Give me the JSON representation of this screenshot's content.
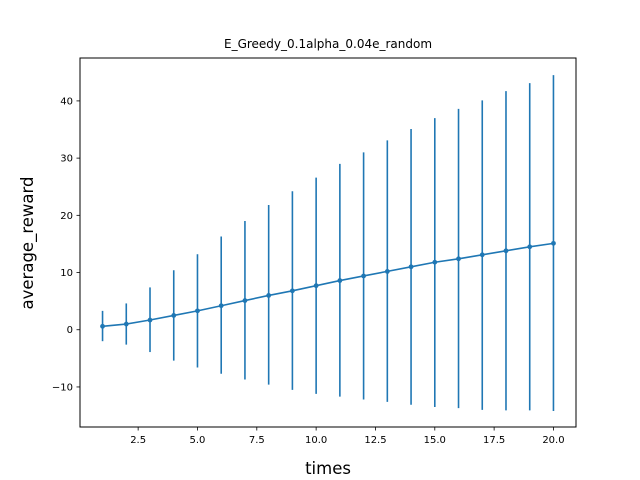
{
  "chart_data": {
    "type": "line",
    "title": "E_Greedy_0.1alpha_0.04e_random",
    "xlabel": "times",
    "ylabel": "average_reward",
    "xlim": [
      0.05,
      20.95
    ],
    "ylim": [
      -17,
      47.5
    ],
    "x_ticks": [
      2.5,
      5.0,
      7.5,
      10.0,
      12.5,
      15.0,
      17.5,
      20.0
    ],
    "x_tick_labels": [
      "2.5",
      "5.0",
      "7.5",
      "10.0",
      "12.5",
      "15.0",
      "17.5",
      "20.0"
    ],
    "y_ticks": [
      -10,
      0,
      10,
      20,
      30,
      40
    ],
    "y_tick_labels": [
      "−10",
      "0",
      "10",
      "20",
      "30",
      "40"
    ],
    "grid": false,
    "legend": "none",
    "color": "#1f77b4",
    "series": [
      {
        "x": [
          1,
          2,
          3,
          4,
          5,
          6,
          7,
          8,
          9,
          10,
          11,
          12,
          13,
          14,
          15,
          16,
          17,
          18,
          19,
          20
        ],
        "y": [
          0.6,
          1.0,
          1.7,
          2.5,
          3.3,
          4.2,
          5.1,
          6.0,
          6.8,
          7.7,
          8.6,
          9.4,
          10.2,
          11.0,
          11.8,
          12.4,
          13.1,
          13.8,
          14.5,
          15.1
        ],
        "error_upper": [
          3.3,
          4.6,
          7.4,
          10.4,
          13.2,
          16.3,
          19.0,
          21.8,
          24.2,
          26.6,
          29.0,
          31.0,
          33.1,
          35.1,
          37.0,
          38.6,
          40.1,
          41.7,
          43.1,
          44.5
        ],
        "error_lower": [
          -2.0,
          -2.6,
          -3.9,
          -5.4,
          -6.6,
          -7.7,
          -8.7,
          -9.6,
          -10.5,
          -11.2,
          -11.7,
          -12.2,
          -12.6,
          -13.1,
          -13.5,
          -13.7,
          -14.0,
          -14.1,
          -14.1,
          -14.2
        ]
      }
    ]
  }
}
